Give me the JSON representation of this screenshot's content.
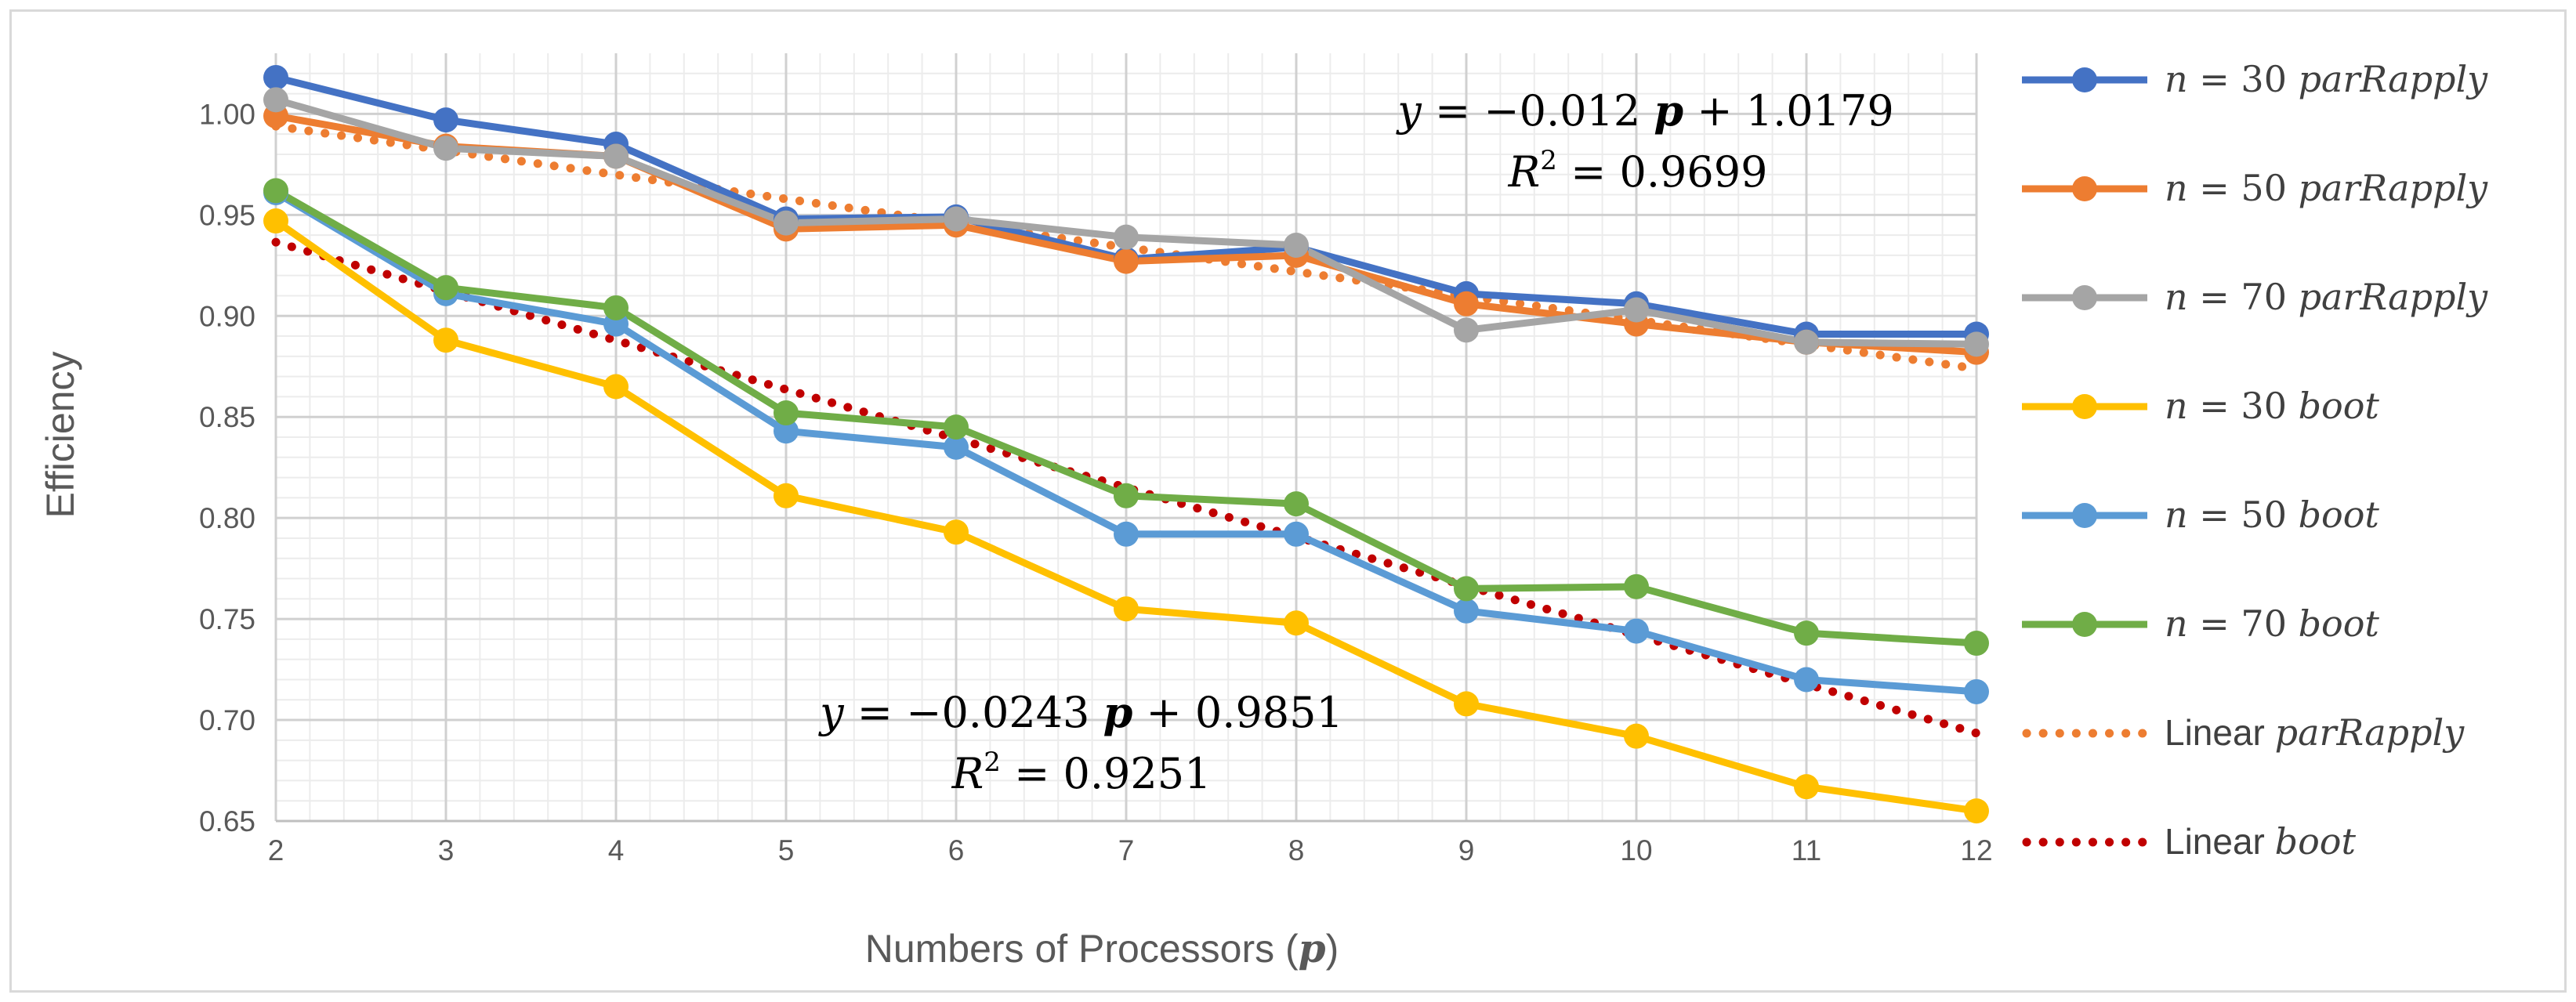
{
  "chart_data": {
    "type": "line",
    "xlabel": "Numbers of Processors (",
    "xlabel_symbol": "p",
    "xlabel_close": ")",
    "ylabel": "Efficiency",
    "x": [
      2,
      3,
      4,
      5,
      6,
      7,
      8,
      9,
      10,
      11,
      12
    ],
    "x_tick_labels": [
      "2",
      "3",
      "4",
      "5",
      "6",
      "7",
      "8",
      "9",
      "10",
      "11",
      "12"
    ],
    "ylim": [
      0.65,
      1.03
    ],
    "y_ticks": [
      0.65,
      0.7,
      0.75,
      0.8,
      0.85,
      0.9,
      0.95,
      1.0
    ],
    "y_tick_labels": [
      "0.65",
      "0.70",
      "0.75",
      "0.80",
      "0.85",
      "0.90",
      "0.95",
      "1.00"
    ],
    "grid": true,
    "legend_position": "right",
    "series": [
      {
        "name": "n = 30 parRapply",
        "n_label": "n",
        "value_label": "= 30",
        "method": "parRapply",
        "color": "#4472C4",
        "style": "solid",
        "values": [
          1.018,
          0.997,
          0.985,
          0.948,
          0.949,
          0.928,
          0.934,
          0.911,
          0.906,
          0.891,
          0.891
        ]
      },
      {
        "name": "n = 50 parRapply",
        "n_label": "n",
        "value_label": "= 50",
        "method": "parRapply",
        "color": "#ED7D31",
        "style": "solid",
        "values": [
          0.999,
          0.984,
          0.979,
          0.943,
          0.945,
          0.927,
          0.93,
          0.906,
          0.896,
          0.887,
          0.882
        ]
      },
      {
        "name": "n = 70 parRapply",
        "n_label": "n",
        "value_label": "= 70",
        "method": "parRapply",
        "color": "#A5A5A5",
        "style": "solid",
        "values": [
          1.007,
          0.983,
          0.979,
          0.946,
          0.948,
          0.939,
          0.935,
          0.893,
          0.903,
          0.887,
          0.886
        ]
      },
      {
        "name": "n = 30 boot",
        "n_label": "n",
        "value_label": "= 30",
        "method": "boot",
        "color": "#FFC000",
        "style": "solid",
        "values": [
          0.947,
          0.888,
          0.865,
          0.811,
          0.793,
          0.755,
          0.748,
          0.708,
          0.692,
          0.667,
          0.655
        ]
      },
      {
        "name": "n = 50 boot",
        "n_label": "n",
        "value_label": "= 50",
        "method": "boot",
        "color": "#5B9BD5",
        "style": "solid",
        "values": [
          0.961,
          0.911,
          0.896,
          0.843,
          0.835,
          0.792,
          0.792,
          0.754,
          0.744,
          0.72,
          0.714
        ]
      },
      {
        "name": "n = 70 boot",
        "n_label": "n",
        "value_label": "= 70",
        "method": "boot",
        "color": "#70AD47",
        "style": "solid",
        "values": [
          0.962,
          0.914,
          0.904,
          0.852,
          0.845,
          0.811,
          0.807,
          0.765,
          0.766,
          0.743,
          0.738
        ]
      }
    ],
    "trendlines": [
      {
        "name": "Linear parRapply",
        "label_prefix": "Linear",
        "method": "parRapply",
        "color": "#ED7D31",
        "style": "dotted",
        "slope": -0.012,
        "intercept": 1.0179
      },
      {
        "name": "Linear boot",
        "label_prefix": "Linear",
        "method": "boot",
        "color": "#C00000",
        "style": "dotted",
        "slope": -0.0243,
        "intercept": 0.9851
      }
    ],
    "annotations": [
      {
        "id": "eq-parRapply",
        "y_sym": "y",
        "eq_prefix": "= −0.012",
        "p_sym": "p",
        "eq_suffix": "+ 1.0179",
        "r2_sym": "R",
        "r2_exp": "2",
        "r2_value": "= 0.9699"
      },
      {
        "id": "eq-boot",
        "y_sym": "y",
        "eq_prefix": "= −0.0243",
        "p_sym": "p",
        "eq_suffix": "+ 0.9851",
        "r2_sym": "R",
        "r2_exp": "2",
        "r2_value": "= 0.9251"
      }
    ]
  }
}
